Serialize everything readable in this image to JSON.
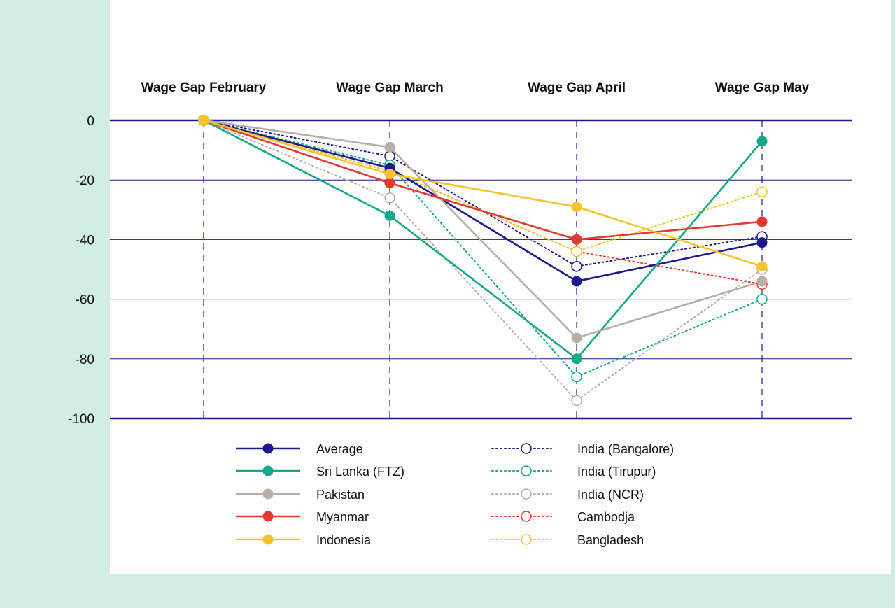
{
  "chart_data": {
    "type": "line",
    "categories": [
      "Wage Gap February",
      "Wage Gap March",
      "Wage Gap April",
      "Wage Gap May"
    ],
    "ylim": [
      -100,
      0
    ],
    "yticks": [
      "0",
      "-20",
      "-40",
      "-60",
      "-80",
      "-100"
    ],
    "grid": true,
    "legend_position": "bottom",
    "series": [
      {
        "name": "Average",
        "values": [
          0,
          -16,
          -54,
          -41
        ],
        "color": "#1c1a8c",
        "style": "solid",
        "marker": "filled"
      },
      {
        "name": "Sri Lanka (FTZ)",
        "values": [
          0,
          -32,
          -80,
          -7
        ],
        "color": "#16a888",
        "style": "solid",
        "marker": "filled"
      },
      {
        "name": "Pakistan",
        "values": [
          0,
          -9,
          -73,
          -54
        ],
        "color": "#b9aea6",
        "style": "solid",
        "marker": "filled"
      },
      {
        "name": "Myanmar",
        "values": [
          0,
          -21,
          -40,
          -34
        ],
        "color": "#e23a30",
        "style": "solid",
        "marker": "filled"
      },
      {
        "name": "Indonesia",
        "values": [
          0,
          -18,
          -29,
          -49
        ],
        "color": "#f5c42c",
        "style": "solid",
        "marker": "filled"
      },
      {
        "name": "India (Bangalore)",
        "values": [
          0,
          -12,
          -49,
          -39
        ],
        "color": "#1c1a8c",
        "style": "dotted",
        "marker": "open"
      },
      {
        "name": "India (Tirupur)",
        "values": [
          0,
          -15,
          -86,
          -60
        ],
        "color": "#16a888",
        "style": "dotted",
        "marker": "open"
      },
      {
        "name": "India (NCR)",
        "values": [
          0,
          -26,
          -94,
          -50
        ],
        "color": "#b9aea6",
        "style": "dotted",
        "marker": "open"
      },
      {
        "name": "Cambodja",
        "values": [
          0,
          -17,
          -44,
          -55
        ],
        "color": "#e23a30",
        "style": "dotted",
        "marker": "open"
      },
      {
        "name": "Bangladesh",
        "values": [
          0,
          -17,
          -44,
          -24
        ],
        "color": "#f5c42c",
        "style": "dotted",
        "marker": "open"
      }
    ]
  }
}
